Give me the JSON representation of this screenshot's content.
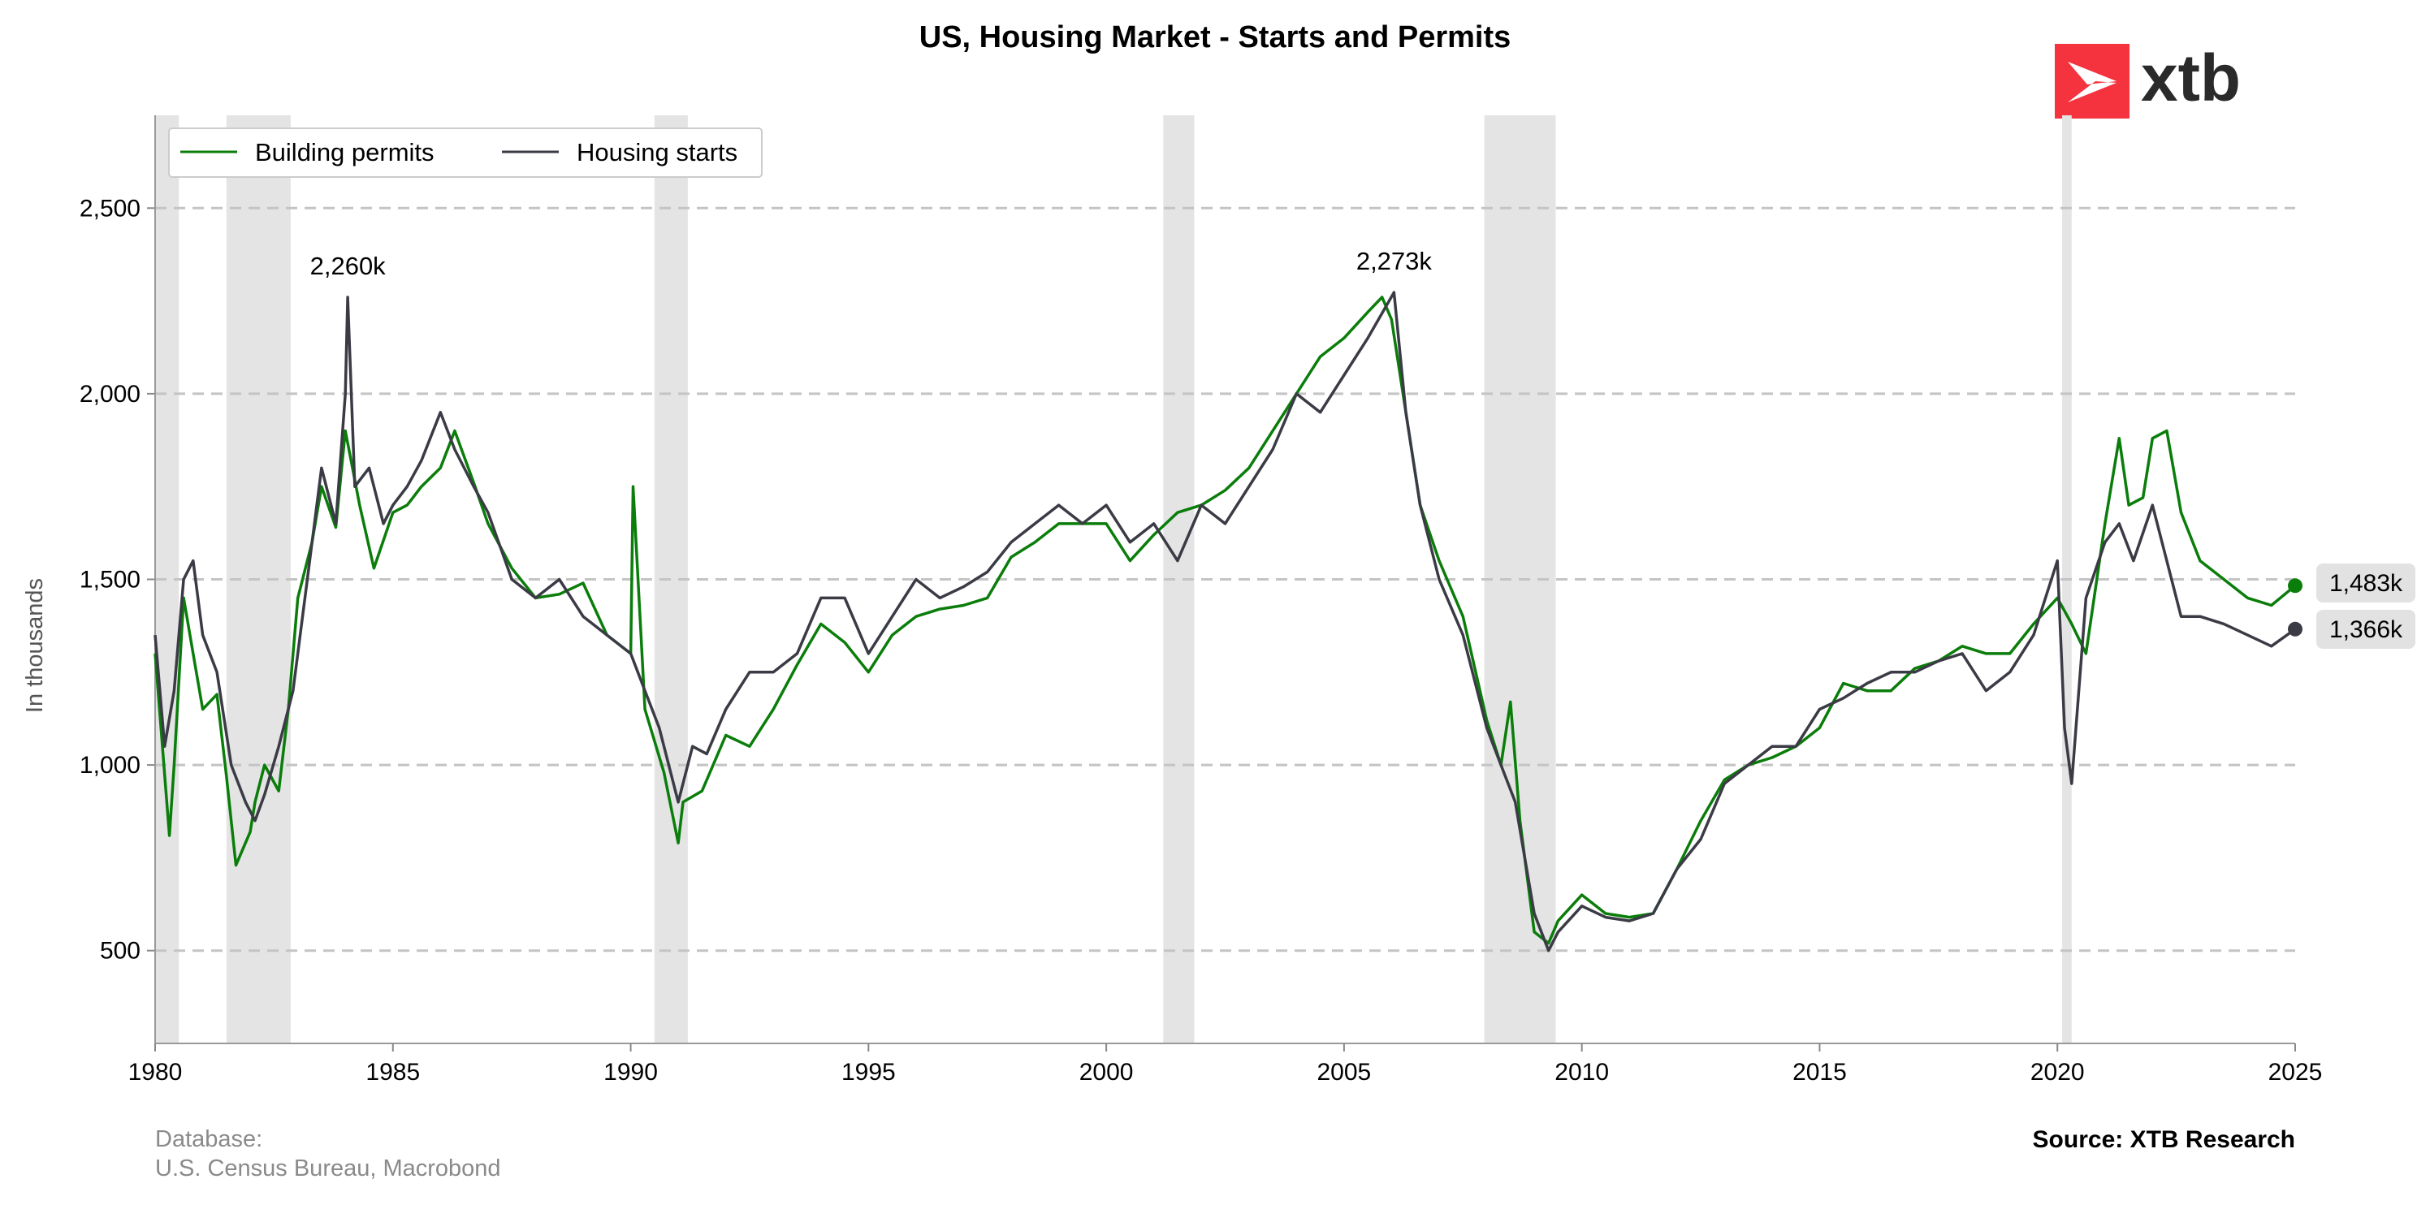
{
  "title": "US, Housing Market - Starts and Permits",
  "logo": {
    "text": "xtb",
    "color": "#f5333f"
  },
  "footer": {
    "database_label": "Database:",
    "database_sources": "U.S. Census Bureau, Macrobond",
    "source": "Source: XTB Research"
  },
  "chart_data": {
    "type": "line",
    "title": "US, Housing Market - Starts and Permits",
    "xlabel": "",
    "ylabel": "In thousands",
    "xlim": [
      1980,
      2025
    ],
    "ylim": [
      250,
      2750
    ],
    "x_ticks": [
      1980,
      1985,
      1990,
      1995,
      2000,
      2005,
      2010,
      2015,
      2020,
      2025
    ],
    "y_ticks": [
      500,
      1000,
      1500,
      2000,
      2500
    ],
    "y_tick_labels": [
      "500",
      "1,000",
      "1,500",
      "2,000",
      "2,500"
    ],
    "grid": "horizontal dashed",
    "legend_position": "top-left",
    "recessions": [
      [
        1980.0,
        1980.5
      ],
      [
        1981.5,
        1982.85
      ],
      [
        1990.5,
        1991.2
      ],
      [
        2001.2,
        2001.85
      ],
      [
        2007.95,
        2009.45
      ],
      [
        2020.1,
        2020.3
      ]
    ],
    "annotations": [
      {
        "x": 1984.05,
        "y": 2260,
        "text": "2,260k"
      },
      {
        "x": 2006.05,
        "y": 2273,
        "text": "2,273k"
      }
    ],
    "end_labels": [
      {
        "series": "Building permits",
        "value": 1483,
        "text": "1,483k"
      },
      {
        "series": "Housing starts",
        "value": 1366,
        "text": "1,366k"
      }
    ],
    "series": [
      {
        "name": "Building permits",
        "color": "#0a7d0a",
        "x": [
          1980.0,
          1980.3,
          1980.4,
          1980.6,
          1980.8,
          1981.0,
          1981.3,
          1981.5,
          1981.7,
          1982.0,
          1982.1,
          1982.3,
          1982.6,
          1982.8,
          1983.0,
          1983.3,
          1983.5,
          1983.8,
          1984.0,
          1984.3,
          1984.6,
          1985.0,
          1985.3,
          1985.6,
          1986.0,
          1986.3,
          1986.7,
          1987.0,
          1987.5,
          1988.0,
          1988.5,
          1989.0,
          1989.5,
          1990.0,
          1990.05,
          1990.3,
          1990.7,
          1991.0,
          1991.1,
          1991.5,
          1992.0,
          1992.5,
          1993.0,
          1993.5,
          1994.0,
          1994.5,
          1995.0,
          1995.5,
          1996.0,
          1996.5,
          1997.0,
          1997.5,
          1998.0,
          1998.5,
          1999.0,
          1999.5,
          2000.0,
          2000.5,
          2001.0,
          2001.5,
          2002.0,
          2002.5,
          2003.0,
          2003.5,
          2004.0,
          2004.5,
          2005.0,
          2005.5,
          2005.8,
          2006.0,
          2006.3,
          2006.6,
          2007.0,
          2007.5,
          2008.0,
          2008.3,
          2008.5,
          2008.7,
          2009.0,
          2009.3,
          2009.5,
          2010.0,
          2010.5,
          2011.0,
          2011.5,
          2012.0,
          2012.5,
          2013.0,
          2013.5,
          2014.0,
          2014.5,
          2015.0,
          2015.5,
          2016.0,
          2016.5,
          2017.0,
          2017.5,
          2018.0,
          2018.5,
          2019.0,
          2019.5,
          2020.0,
          2020.3,
          2020.6,
          2021.0,
          2021.3,
          2021.5,
          2021.8,
          2022.0,
          2022.3,
          2022.6,
          2023.0,
          2023.5,
          2024.0,
          2024.5,
          2025.0
        ],
        "y": [
          1300,
          810,
          1000,
          1450,
          1300,
          1150,
          1190,
          970,
          730,
          820,
          900,
          1000,
          930,
          1150,
          1450,
          1600,
          1750,
          1640,
          1900,
          1700,
          1530,
          1680,
          1700,
          1750,
          1800,
          1900,
          1760,
          1650,
          1530,
          1450,
          1460,
          1490,
          1350,
          1300,
          1750,
          1150,
          980,
          790,
          900,
          930,
          1080,
          1050,
          1150,
          1270,
          1380,
          1330,
          1250,
          1350,
          1400,
          1420,
          1430,
          1450,
          1560,
          1600,
          1650,
          1650,
          1650,
          1550,
          1620,
          1680,
          1700,
          1740,
          1800,
          1900,
          2000,
          2100,
          2150,
          2220,
          2260,
          2200,
          1950,
          1700,
          1550,
          1400,
          1120,
          1000,
          1170,
          850,
          550,
          520,
          580,
          650,
          600,
          590,
          600,
          720,
          850,
          960,
          1000,
          1020,
          1050,
          1100,
          1220,
          1200,
          1200,
          1260,
          1280,
          1320,
          1300,
          1300,
          1380,
          1450,
          1380,
          1300,
          1650,
          1880,
          1700,
          1720,
          1880,
          1900,
          1680,
          1550,
          1500,
          1450,
          1430,
          1483
        ]
      },
      {
        "name": "Housing starts",
        "color": "#3a3b45",
        "x": [
          1980.0,
          1980.2,
          1980.4,
          1980.6,
          1980.8,
          1981.0,
          1981.3,
          1981.6,
          1981.9,
          1982.1,
          1982.3,
          1982.6,
          1982.9,
          1983.2,
          1983.5,
          1983.8,
          1984.0,
          1984.05,
          1984.2,
          1984.5,
          1984.8,
          1985.0,
          1985.3,
          1985.6,
          1986.0,
          1986.3,
          1986.7,
          1987.0,
          1987.5,
          1988.0,
          1988.5,
          1989.0,
          1989.5,
          1990.0,
          1990.3,
          1990.6,
          1991.0,
          1991.3,
          1991.6,
          1992.0,
          1992.5,
          1993.0,
          1993.5,
          1994.0,
          1994.5,
          1995.0,
          1995.5,
          1996.0,
          1996.5,
          1997.0,
          1997.5,
          1998.0,
          1998.5,
          1999.0,
          1999.5,
          2000.0,
          2000.5,
          2001.0,
          2001.5,
          2002.0,
          2002.5,
          2003.0,
          2003.5,
          2004.0,
          2004.5,
          2005.0,
          2005.5,
          2006.05,
          2006.3,
          2006.6,
          2007.0,
          2007.5,
          2008.0,
          2008.3,
          2008.6,
          2009.0,
          2009.3,
          2009.5,
          2010.0,
          2010.5,
          2011.0,
          2011.5,
          2012.0,
          2012.5,
          2013.0,
          2013.5,
          2014.0,
          2014.5,
          2015.0,
          2015.5,
          2016.0,
          2016.5,
          2017.0,
          2017.5,
          2018.0,
          2018.5,
          2019.0,
          2019.5,
          2020.0,
          2020.15,
          2020.3,
          2020.6,
          2021.0,
          2021.3,
          2021.6,
          2022.0,
          2022.3,
          2022.6,
          2023.0,
          2023.5,
          2024.0,
          2024.5,
          2025.0
        ],
        "y": [
          1350,
          1050,
          1200,
          1500,
          1550,
          1350,
          1250,
          1000,
          900,
          850,
          920,
          1050,
          1200,
          1500,
          1800,
          1650,
          2000,
          2260,
          1750,
          1800,
          1650,
          1700,
          1750,
          1820,
          1950,
          1850,
          1750,
          1680,
          1500,
          1450,
          1500,
          1400,
          1350,
          1300,
          1200,
          1100,
          900,
          1050,
          1030,
          1150,
          1250,
          1250,
          1300,
          1450,
          1450,
          1300,
          1400,
          1500,
          1450,
          1480,
          1520,
          1600,
          1650,
          1700,
          1650,
          1700,
          1600,
          1650,
          1550,
          1700,
          1650,
          1750,
          1850,
          2000,
          1950,
          2050,
          2150,
          2273,
          1950,
          1700,
          1500,
          1350,
          1100,
          1000,
          900,
          600,
          500,
          550,
          620,
          590,
          580,
          600,
          720,
          800,
          950,
          1000,
          1050,
          1050,
          1150,
          1180,
          1220,
          1250,
          1250,
          1280,
          1300,
          1200,
          1250,
          1350,
          1550,
          1100,
          950,
          1450,
          1600,
          1650,
          1550,
          1700,
          1550,
          1400,
          1400,
          1380,
          1350,
          1320,
          1366
        ]
      }
    ]
  }
}
